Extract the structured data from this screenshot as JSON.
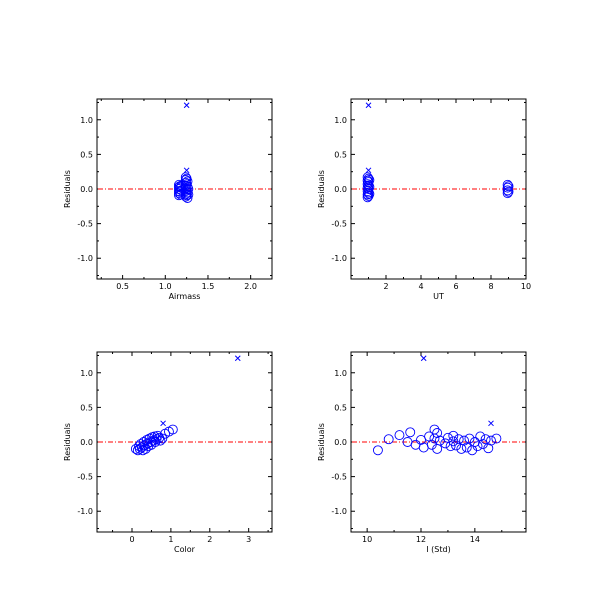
{
  "colors": {
    "marker": "#0000ff",
    "zero_line": "#ff0000",
    "axis": "#000000",
    "background": "#ffffff"
  },
  "chart_data": [
    {
      "id": "airmass",
      "type": "scatter",
      "xlabel": "Airmass",
      "ylabel": "Residuals",
      "xlim": [
        0.2,
        2.25
      ],
      "ylim": [
        -1.3,
        1.3
      ],
      "xticks": [
        0.5,
        1.0,
        1.5,
        2.0
      ],
      "xtick_labels": [
        "0.5",
        "1.0",
        "1.5",
        "2.0"
      ],
      "xminor": [
        0.25,
        0.75,
        1.25,
        1.75
      ],
      "yticks": [
        -1.0,
        -0.5,
        0.0,
        0.5,
        1.0
      ],
      "ytick_labels": [
        "-1.0",
        "-0.5",
        "0.0",
        "0.5",
        "1.0"
      ],
      "zero_line": 0,
      "series": [
        {
          "marker": "circle",
          "points": [
            [
              1.16,
              0.06
            ],
            [
              1.16,
              0.03
            ],
            [
              1.16,
              0.0
            ],
            [
              1.16,
              -0.03
            ],
            [
              1.16,
              -0.06
            ],
            [
              1.16,
              -0.09
            ],
            [
              1.17,
              0.04
            ],
            [
              1.17,
              -0.04
            ],
            [
              1.18,
              0.02
            ],
            [
              1.18,
              -0.08
            ],
            [
              1.19,
              0.05
            ],
            [
              1.19,
              -0.02
            ],
            [
              1.24,
              0.17
            ],
            [
              1.24,
              0.13
            ],
            [
              1.24,
              0.09
            ],
            [
              1.24,
              0.05
            ],
            [
              1.24,
              0.01
            ],
            [
              1.24,
              -0.03
            ],
            [
              1.24,
              -0.07
            ],
            [
              1.24,
              -0.11
            ],
            [
              1.25,
              0.15
            ],
            [
              1.25,
              0.07
            ],
            [
              1.25,
              -0.01
            ],
            [
              1.25,
              -0.09
            ],
            [
              1.26,
              0.11
            ],
            [
              1.26,
              0.03
            ],
            [
              1.26,
              -0.05
            ],
            [
              1.26,
              -0.13
            ],
            [
              1.27,
              0.0
            ],
            [
              1.27,
              -0.08
            ]
          ]
        },
        {
          "marker": "x",
          "points": [
            [
              1.25,
              1.21
            ],
            [
              1.25,
              0.27
            ]
          ]
        }
      ]
    },
    {
      "id": "ut",
      "type": "scatter",
      "xlabel": "UT",
      "ylabel": "Residuals",
      "xlim": [
        0.0,
        10.0
      ],
      "ylim": [
        -1.3,
        1.3
      ],
      "xticks": [
        2,
        4,
        6,
        8,
        10
      ],
      "xtick_labels": [
        "2",
        "4",
        "6",
        "8",
        "10"
      ],
      "xminor": [
        1,
        3,
        5,
        7,
        9
      ],
      "yticks": [
        -1.0,
        -0.5,
        0.0,
        0.5,
        1.0
      ],
      "ytick_labels": [
        "-1.0",
        "-0.5",
        "0.0",
        "0.5",
        "1.0"
      ],
      "zero_line": 0,
      "series": [
        {
          "marker": "circle",
          "points": [
            [
              0.95,
              0.17
            ],
            [
              0.95,
              0.12
            ],
            [
              0.95,
              0.07
            ],
            [
              0.95,
              0.02
            ],
            [
              0.95,
              -0.03
            ],
            [
              0.95,
              -0.08
            ],
            [
              0.95,
              -0.12
            ],
            [
              1.0,
              0.15
            ],
            [
              1.0,
              0.1
            ],
            [
              1.0,
              0.05
            ],
            [
              1.0,
              0.0
            ],
            [
              1.0,
              -0.05
            ],
            [
              1.0,
              -0.1
            ],
            [
              1.05,
              0.13
            ],
            [
              1.05,
              0.03
            ],
            [
              1.05,
              -0.07
            ],
            [
              8.95,
              0.06
            ],
            [
              8.95,
              0.02
            ],
            [
              8.95,
              -0.02
            ],
            [
              8.95,
              -0.06
            ],
            [
              9.0,
              0.04
            ],
            [
              9.0,
              -0.04
            ]
          ]
        },
        {
          "marker": "x",
          "points": [
            [
              1.0,
              1.21
            ],
            [
              1.0,
              0.27
            ]
          ]
        }
      ]
    },
    {
      "id": "color",
      "type": "scatter",
      "xlabel": "Color",
      "ylabel": "Residuals",
      "xlim": [
        -0.9,
        3.6
      ],
      "ylim": [
        -1.3,
        1.3
      ],
      "xticks": [
        0,
        1,
        2,
        3
      ],
      "xtick_labels": [
        "0",
        "1",
        "2",
        "3"
      ],
      "xminor": [
        -0.5,
        0.5,
        1.5,
        2.5,
        3.5
      ],
      "yticks": [
        -1.0,
        -0.5,
        0.0,
        0.5,
        1.0
      ],
      "ytick_labels": [
        "-1.0",
        "-0.5",
        "0.0",
        "0.5",
        "1.0"
      ],
      "zero_line": 0,
      "series": [
        {
          "marker": "circle",
          "points": [
            [
              0.1,
              -0.1
            ],
            [
              0.15,
              -0.12
            ],
            [
              0.18,
              -0.06
            ],
            [
              0.2,
              -0.1
            ],
            [
              0.22,
              -0.03
            ],
            [
              0.25,
              -0.08
            ],
            [
              0.28,
              -0.12
            ],
            [
              0.3,
              0.0
            ],
            [
              0.32,
              -0.05
            ],
            [
              0.35,
              -0.1
            ],
            [
              0.38,
              0.03
            ],
            [
              0.4,
              -0.02
            ],
            [
              0.42,
              -0.06
            ],
            [
              0.45,
              0.05
            ],
            [
              0.48,
              0.0
            ],
            [
              0.5,
              -0.04
            ],
            [
              0.52,
              0.07
            ],
            [
              0.55,
              0.02
            ],
            [
              0.58,
              0.08
            ],
            [
              0.6,
              0.0
            ],
            [
              0.63,
              0.04
            ],
            [
              0.66,
              0.09
            ],
            [
              0.7,
              0.06
            ],
            [
              0.73,
              0.02
            ],
            [
              0.78,
              0.05
            ],
            [
              0.85,
              0.12
            ],
            [
              0.95,
              0.15
            ],
            [
              1.05,
              0.18
            ]
          ]
        },
        {
          "marker": "x",
          "points": [
            [
              2.72,
              1.21
            ],
            [
              0.8,
              0.27
            ]
          ]
        }
      ]
    },
    {
      "id": "istd",
      "type": "scatter",
      "xlabel": "I (Std)",
      "ylabel": "Residuals",
      "xlim": [
        9.4,
        15.9
      ],
      "ylim": [
        -1.3,
        1.3
      ],
      "xticks": [
        10,
        12,
        14
      ],
      "xtick_labels": [
        "10",
        "12",
        "14"
      ],
      "xminor": [
        11,
        13,
        15
      ],
      "yticks": [
        -1.0,
        -0.5,
        0.0,
        0.5,
        1.0
      ],
      "ytick_labels": [
        "-1.0",
        "-0.5",
        "0.0",
        "0.5",
        "1.0"
      ],
      "zero_line": 0,
      "series": [
        {
          "marker": "circle",
          "points": [
            [
              10.4,
              -0.12
            ],
            [
              10.8,
              0.04
            ],
            [
              11.2,
              0.1
            ],
            [
              11.5,
              0.0
            ],
            [
              11.6,
              0.14
            ],
            [
              11.8,
              -0.04
            ],
            [
              12.0,
              0.03
            ],
            [
              12.1,
              -0.08
            ],
            [
              12.3,
              0.08
            ],
            [
              12.4,
              -0.04
            ],
            [
              12.5,
              0.18
            ],
            [
              12.5,
              0.05
            ],
            [
              12.6,
              0.13
            ],
            [
              12.6,
              -0.1
            ],
            [
              12.7,
              0.02
            ],
            [
              12.9,
              -0.02
            ],
            [
              13.0,
              0.06
            ],
            [
              13.1,
              -0.06
            ],
            [
              13.2,
              0.01
            ],
            [
              13.2,
              0.09
            ],
            [
              13.3,
              -0.05
            ],
            [
              13.4,
              0.04
            ],
            [
              13.5,
              -0.1
            ],
            [
              13.6,
              0.02
            ],
            [
              13.7,
              -0.08
            ],
            [
              13.8,
              0.05
            ],
            [
              13.9,
              -0.12
            ],
            [
              14.0,
              0.0
            ],
            [
              14.1,
              -0.06
            ],
            [
              14.2,
              0.08
            ],
            [
              14.3,
              -0.03
            ],
            [
              14.4,
              0.04
            ],
            [
              14.5,
              -0.09
            ],
            [
              14.6,
              0.02
            ],
            [
              14.8,
              0.05
            ]
          ]
        },
        {
          "marker": "x",
          "points": [
            [
              12.1,
              1.21
            ],
            [
              14.6,
              0.27
            ]
          ]
        }
      ]
    }
  ]
}
